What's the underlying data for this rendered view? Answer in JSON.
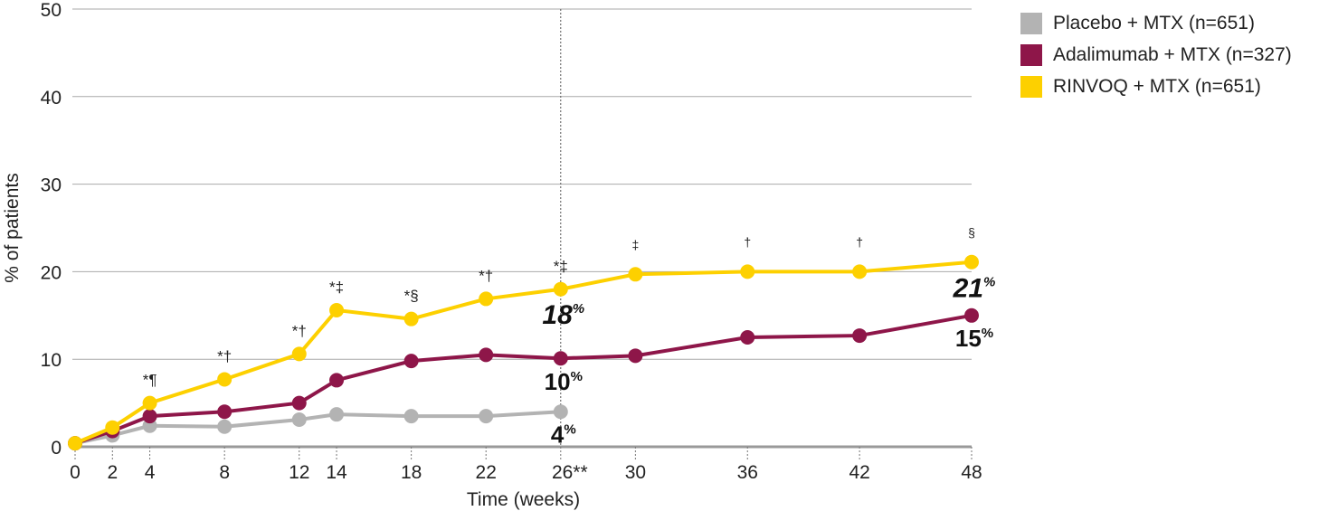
{
  "chart_data": {
    "type": "line",
    "xlabel": "Time (weeks)",
    "ylabel": "% of patients",
    "ylim": [
      0,
      50
    ],
    "yticks": [
      0,
      10,
      20,
      30,
      40,
      50
    ],
    "xticks": [
      0,
      2,
      4,
      8,
      12,
      14,
      18,
      22,
      26,
      30,
      36,
      42,
      48
    ],
    "xtick_labels": [
      "0",
      "2",
      "4",
      "8",
      "12",
      "14",
      "18",
      "22",
      "26**",
      "30",
      "36",
      "42",
      "48"
    ],
    "grid": "horizontal",
    "legend": "top-right",
    "series": [
      {
        "name": "Placebo + MTX (n=651)",
        "color": "#b3b3b3",
        "x": [
          0,
          2,
          4,
          8,
          12,
          14,
          18,
          22,
          26
        ],
        "y": [
          0.4,
          1.3,
          2.4,
          2.3,
          3.1,
          3.7,
          3.5,
          3.5,
          4.0
        ]
      },
      {
        "name": "Adalimumab + MTX (n=327)",
        "color": "#8e1649",
        "x": [
          0,
          2,
          4,
          8,
          12,
          14,
          18,
          22,
          26,
          30,
          36,
          42,
          48
        ],
        "y": [
          0.4,
          1.8,
          3.5,
          4.0,
          5.0,
          7.6,
          9.8,
          10.5,
          10.1,
          10.4,
          12.5,
          12.7,
          15.0
        ]
      },
      {
        "name": "RINVOQ + MTX (n=651)",
        "color": "#fdd000",
        "x": [
          0,
          2,
          4,
          8,
          12,
          14,
          18,
          22,
          26,
          30,
          36,
          42,
          48
        ],
        "y": [
          0.4,
          2.2,
          5.0,
          7.7,
          10.6,
          15.6,
          14.6,
          16.9,
          18.0,
          19.7,
          20.0,
          20.0,
          21.1
        ]
      }
    ],
    "significance_marks": [
      {
        "x": 4,
        "label": "*¶"
      },
      {
        "x": 8,
        "label": "*†"
      },
      {
        "x": 12,
        "label": "*†"
      },
      {
        "x": 14,
        "label": "*‡"
      },
      {
        "x": 18,
        "label": "*§"
      },
      {
        "x": 22,
        "label": "*†"
      },
      {
        "x": 26,
        "label": "*‡"
      },
      {
        "x": 30,
        "label": "‡"
      },
      {
        "x": 36,
        "label": "†"
      },
      {
        "x": 42,
        "label": "†"
      },
      {
        "x": 48,
        "label": "§"
      }
    ],
    "annotations": [
      {
        "x": 26,
        "y": 18,
        "label": "18",
        "unit": "%",
        "style": "script"
      },
      {
        "x": 26,
        "y": 10,
        "label": "10",
        "unit": "%"
      },
      {
        "x": 26,
        "y": 4,
        "label": "4",
        "unit": "%"
      },
      {
        "x": 48,
        "y": 21,
        "label": "21",
        "unit": "%",
        "style": "script"
      },
      {
        "x": 48,
        "y": 15,
        "label": "15",
        "unit": "%"
      }
    ],
    "reference_line_x": 26
  }
}
